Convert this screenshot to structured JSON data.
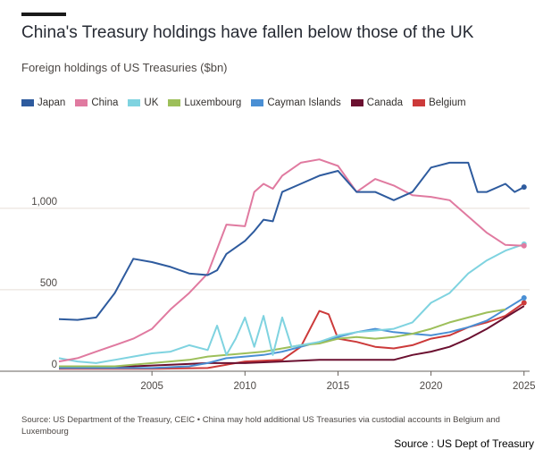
{
  "header": {
    "title": "China's Treasury holdings have fallen below those of the UK",
    "subtitle": "Foreign holdings of US Treasuries ($bn)"
  },
  "footnote": "Source: US Department of the Treasury, CEIC • China may hold additional US Treasuries via custodial accounts in Belgium and Luxembourg",
  "credit": "Source : US Dept of Treasury",
  "chart_data": {
    "type": "line",
    "title": "China's Treasury holdings have fallen below those of the UK",
    "subtitle": "Foreign holdings of US Treasuries ($bn)",
    "xlabel": "",
    "ylabel": "",
    "xlim": [
      2000,
      2025.3
    ],
    "ylim": [
      0,
      1400
    ],
    "x_ticks": [
      2005,
      2010,
      2015,
      2020,
      2025
    ],
    "y_ticks": [
      0,
      500,
      1000
    ],
    "y_tick_labels": [
      "0",
      "500",
      "1,000"
    ],
    "grid": "horizontal",
    "legend_position": "top",
    "series": [
      {
        "name": "Japan",
        "color": "#2e5b9e",
        "end_marker": true,
        "points": [
          [
            2000,
            320
          ],
          [
            2001,
            315
          ],
          [
            2002,
            330
          ],
          [
            2003,
            480
          ],
          [
            2004,
            690
          ],
          [
            2005,
            670
          ],
          [
            2006,
            640
          ],
          [
            2007,
            600
          ],
          [
            2008,
            590
          ],
          [
            2008.5,
            620
          ],
          [
            2009,
            720
          ],
          [
            2010,
            800
          ],
          [
            2010.5,
            860
          ],
          [
            2011,
            930
          ],
          [
            2011.5,
            920
          ],
          [
            2012,
            1100
          ],
          [
            2013,
            1150
          ],
          [
            2014,
            1200
          ],
          [
            2015,
            1230
          ],
          [
            2016,
            1100
          ],
          [
            2017,
            1100
          ],
          [
            2018,
            1050
          ],
          [
            2019,
            1100
          ],
          [
            2020,
            1250
          ],
          [
            2021,
            1280
          ],
          [
            2022,
            1280
          ],
          [
            2022.5,
            1100
          ],
          [
            2023,
            1100
          ],
          [
            2024,
            1150
          ],
          [
            2024.5,
            1100
          ],
          [
            2025,
            1130
          ]
        ]
      },
      {
        "name": "China",
        "color": "#e07aa0",
        "end_marker": true,
        "points": [
          [
            2000,
            60
          ],
          [
            2001,
            80
          ],
          [
            2002,
            120
          ],
          [
            2003,
            160
          ],
          [
            2004,
            200
          ],
          [
            2005,
            260
          ],
          [
            2006,
            380
          ],
          [
            2007,
            480
          ],
          [
            2008,
            600
          ],
          [
            2008.5,
            750
          ],
          [
            2009,
            900
          ],
          [
            2010,
            890
          ],
          [
            2010.5,
            1100
          ],
          [
            2011,
            1150
          ],
          [
            2011.5,
            1120
          ],
          [
            2012,
            1200
          ],
          [
            2013,
            1280
          ],
          [
            2014,
            1300
          ],
          [
            2015,
            1260
          ],
          [
            2016,
            1100
          ],
          [
            2017,
            1180
          ],
          [
            2018,
            1140
          ],
          [
            2019,
            1080
          ],
          [
            2020,
            1070
          ],
          [
            2021,
            1050
          ],
          [
            2022,
            950
          ],
          [
            2023,
            850
          ],
          [
            2024,
            775
          ],
          [
            2025,
            770
          ]
        ]
      },
      {
        "name": "UK",
        "color": "#7fd3e0",
        "end_marker": true,
        "points": [
          [
            2000,
            80
          ],
          [
            2001,
            60
          ],
          [
            2002,
            50
          ],
          [
            2003,
            70
          ],
          [
            2004,
            90
          ],
          [
            2005,
            110
          ],
          [
            2006,
            120
          ],
          [
            2007,
            160
          ],
          [
            2008,
            130
          ],
          [
            2008.5,
            280
          ],
          [
            2009,
            100
          ],
          [
            2009.5,
            200
          ],
          [
            2010,
            330
          ],
          [
            2010.5,
            150
          ],
          [
            2011,
            340
          ],
          [
            2011.5,
            100
          ],
          [
            2012,
            330
          ],
          [
            2012.5,
            150
          ],
          [
            2013,
            160
          ],
          [
            2014,
            180
          ],
          [
            2015,
            220
          ],
          [
            2016,
            240
          ],
          [
            2017,
            250
          ],
          [
            2018,
            260
          ],
          [
            2019,
            300
          ],
          [
            2020,
            420
          ],
          [
            2021,
            480
          ],
          [
            2022,
            600
          ],
          [
            2023,
            680
          ],
          [
            2024,
            740
          ],
          [
            2025,
            780
          ]
        ]
      },
      {
        "name": "Luxembourg",
        "color": "#9dbf5a",
        "end_marker": false,
        "points": [
          [
            2000,
            30
          ],
          [
            2003,
            30
          ],
          [
            2005,
            50
          ],
          [
            2007,
            70
          ],
          [
            2008,
            90
          ],
          [
            2009,
            100
          ],
          [
            2010,
            110
          ],
          [
            2011,
            120
          ],
          [
            2012,
            140
          ],
          [
            2013,
            160
          ],
          [
            2014,
            170
          ],
          [
            2015,
            200
          ],
          [
            2016,
            210
          ],
          [
            2017,
            200
          ],
          [
            2018,
            210
          ],
          [
            2019,
            230
          ],
          [
            2020,
            260
          ],
          [
            2021,
            300
          ],
          [
            2022,
            330
          ],
          [
            2023,
            360
          ],
          [
            2024,
            380
          ]
        ]
      },
      {
        "name": "Cayman Islands",
        "color": "#4a8fd4",
        "end_marker": true,
        "points": [
          [
            2000,
            20
          ],
          [
            2005,
            20
          ],
          [
            2007,
            30
          ],
          [
            2008,
            50
          ],
          [
            2009,
            80
          ],
          [
            2010,
            90
          ],
          [
            2011,
            100
          ],
          [
            2012,
            120
          ],
          [
            2013,
            150
          ],
          [
            2014,
            180
          ],
          [
            2015,
            210
          ],
          [
            2016,
            240
          ],
          [
            2017,
            260
          ],
          [
            2018,
            240
          ],
          [
            2019,
            230
          ],
          [
            2020,
            220
          ],
          [
            2021,
            240
          ],
          [
            2022,
            270
          ],
          [
            2023,
            310
          ],
          [
            2024,
            380
          ],
          [
            2025,
            450
          ]
        ]
      },
      {
        "name": "Canada",
        "color": "#6b1030",
        "end_marker": false,
        "points": [
          [
            2000,
            20
          ],
          [
            2002,
            30
          ],
          [
            2004,
            30
          ],
          [
            2006,
            40
          ],
          [
            2008,
            50
          ],
          [
            2010,
            50
          ],
          [
            2012,
            60
          ],
          [
            2014,
            70
          ],
          [
            2016,
            70
          ],
          [
            2018,
            70
          ],
          [
            2019,
            100
          ],
          [
            2020,
            120
          ],
          [
            2021,
            150
          ],
          [
            2022,
            200
          ],
          [
            2023,
            260
          ],
          [
            2024,
            330
          ],
          [
            2025,
            400
          ]
        ]
      },
      {
        "name": "Belgium",
        "color": "#cc3a3a",
        "end_marker": true,
        "points": [
          [
            2000,
            15
          ],
          [
            2005,
            15
          ],
          [
            2008,
            20
          ],
          [
            2010,
            60
          ],
          [
            2012,
            70
          ],
          [
            2013,
            150
          ],
          [
            2014,
            370
          ],
          [
            2014.5,
            350
          ],
          [
            2015,
            200
          ],
          [
            2016,
            180
          ],
          [
            2017,
            150
          ],
          [
            2018,
            140
          ],
          [
            2019,
            160
          ],
          [
            2020,
            200
          ],
          [
            2021,
            220
          ],
          [
            2022,
            270
          ],
          [
            2023,
            300
          ],
          [
            2024,
            340
          ],
          [
            2025,
            420
          ]
        ]
      }
    ]
  }
}
